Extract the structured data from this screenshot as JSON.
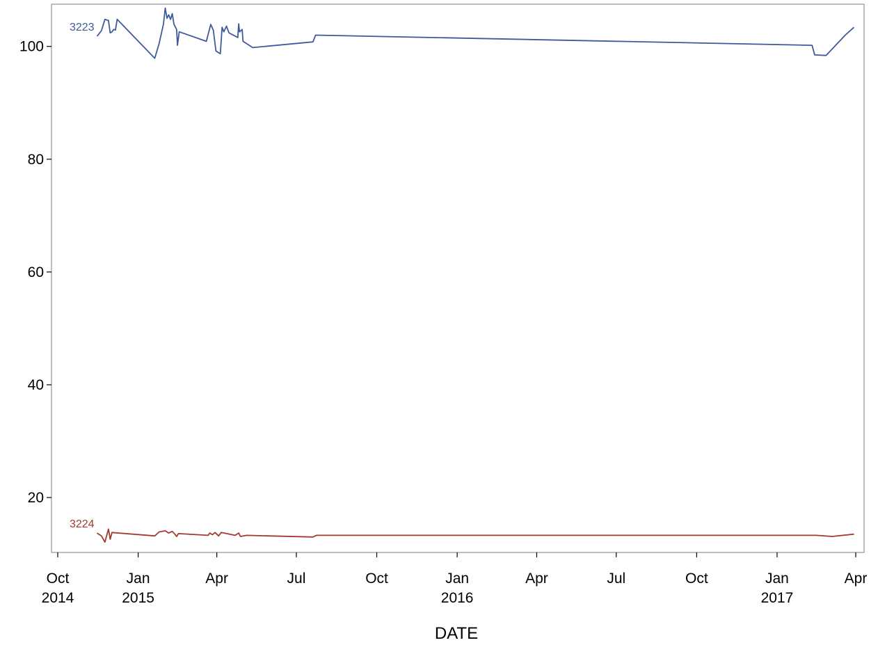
{
  "chart_data": {
    "type": "line",
    "title": "",
    "xlabel": "DATE",
    "ylabel": "",
    "x_axis": {
      "type": "date",
      "range": [
        "2014-10-01",
        "2017-04-01"
      ],
      "ticks": [
        {
          "date": "2014-10-01",
          "label": "Oct",
          "year": "2014"
        },
        {
          "date": "2015-01-01",
          "label": "Jan",
          "year": "2015"
        },
        {
          "date": "2015-04-01",
          "label": "Apr",
          "year": ""
        },
        {
          "date": "2015-07-01",
          "label": "Jul",
          "year": ""
        },
        {
          "date": "2015-10-01",
          "label": "Oct",
          "year": ""
        },
        {
          "date": "2016-01-01",
          "label": "Jan",
          "year": "2016"
        },
        {
          "date": "2016-04-01",
          "label": "Apr",
          "year": ""
        },
        {
          "date": "2016-07-01",
          "label": "Jul",
          "year": ""
        },
        {
          "date": "2016-10-01",
          "label": "Oct",
          "year": ""
        },
        {
          "date": "2017-01-01",
          "label": "Jan",
          "year": "2017"
        },
        {
          "date": "2017-04-01",
          "label": "Apr",
          "year": ""
        }
      ]
    },
    "y_axis": {
      "range": [
        11,
        107
      ],
      "ticks": [
        20,
        40,
        60,
        80,
        100
      ]
    },
    "grid": false,
    "legend": "none",
    "series": [
      {
        "name": "3223",
        "color": "#3f5a9a",
        "points": [
          [
            "2014-11-15",
            101.8
          ],
          [
            "2014-11-20",
            102.8
          ],
          [
            "2014-11-24",
            104.8
          ],
          [
            "2014-11-28",
            104.6
          ],
          [
            "2014-11-30",
            102.4
          ],
          [
            "2014-12-02",
            102.6
          ],
          [
            "2014-12-04",
            103.0
          ],
          [
            "2014-12-06",
            102.9
          ],
          [
            "2014-12-08",
            104.8
          ],
          [
            "2015-01-20",
            97.9
          ],
          [
            "2015-01-25",
            100.5
          ],
          [
            "2015-01-30",
            104.0
          ],
          [
            "2015-02-01",
            106.8
          ],
          [
            "2015-02-03",
            105.0
          ],
          [
            "2015-02-05",
            105.6
          ],
          [
            "2015-02-07",
            104.8
          ],
          [
            "2015-02-09",
            105.8
          ],
          [
            "2015-02-11",
            103.9
          ],
          [
            "2015-02-14",
            103.0
          ],
          [
            "2015-02-15",
            100.2
          ],
          [
            "2015-02-17",
            102.6
          ],
          [
            "2015-03-20",
            100.9
          ],
          [
            "2015-03-25",
            103.9
          ],
          [
            "2015-03-28",
            102.9
          ],
          [
            "2015-03-31",
            99.2
          ],
          [
            "2015-04-05",
            98.7
          ],
          [
            "2015-04-07",
            103.4
          ],
          [
            "2015-04-09",
            102.6
          ],
          [
            "2015-04-12",
            103.6
          ],
          [
            "2015-04-15",
            102.4
          ],
          [
            "2015-04-25",
            101.6
          ],
          [
            "2015-04-26",
            104.0
          ],
          [
            "2015-04-27",
            102.6
          ],
          [
            "2015-04-30",
            103.0
          ],
          [
            "2015-05-01",
            100.9
          ],
          [
            "2015-05-12",
            99.8
          ],
          [
            "2015-07-20",
            100.8
          ],
          [
            "2015-07-23",
            102.0
          ],
          [
            "2017-02-10",
            100.2
          ],
          [
            "2017-02-13",
            98.5
          ],
          [
            "2017-02-26",
            98.4
          ],
          [
            "2017-03-20",
            102.0
          ],
          [
            "2017-03-30",
            103.4
          ]
        ]
      },
      {
        "name": "3224",
        "color": "#a23a2e",
        "points": [
          [
            "2014-11-15",
            13.7
          ],
          [
            "2014-11-20",
            13.2
          ],
          [
            "2014-11-24",
            12.1
          ],
          [
            "2014-11-28",
            14.4
          ],
          [
            "2014-11-30",
            12.6
          ],
          [
            "2014-12-02",
            13.8
          ],
          [
            "2015-01-20",
            13.2
          ],
          [
            "2015-01-25",
            13.9
          ],
          [
            "2015-02-01",
            14.1
          ],
          [
            "2015-02-05",
            13.7
          ],
          [
            "2015-02-09",
            14.0
          ],
          [
            "2015-02-12",
            13.5
          ],
          [
            "2015-02-14",
            13.1
          ],
          [
            "2015-02-16",
            13.6
          ],
          [
            "2015-03-22",
            13.3
          ],
          [
            "2015-03-24",
            13.7
          ],
          [
            "2015-03-27",
            13.4
          ],
          [
            "2015-03-30",
            13.8
          ],
          [
            "2015-04-03",
            13.2
          ],
          [
            "2015-04-06",
            13.8
          ],
          [
            "2015-04-22",
            13.3
          ],
          [
            "2015-04-26",
            13.7
          ],
          [
            "2015-04-28",
            13.1
          ],
          [
            "2015-05-05",
            13.3
          ],
          [
            "2015-07-20",
            13.0
          ],
          [
            "2015-07-24",
            13.3
          ],
          [
            "2017-02-15",
            13.3
          ],
          [
            "2017-03-05",
            13.1
          ],
          [
            "2017-03-30",
            13.5
          ]
        ]
      }
    ]
  }
}
